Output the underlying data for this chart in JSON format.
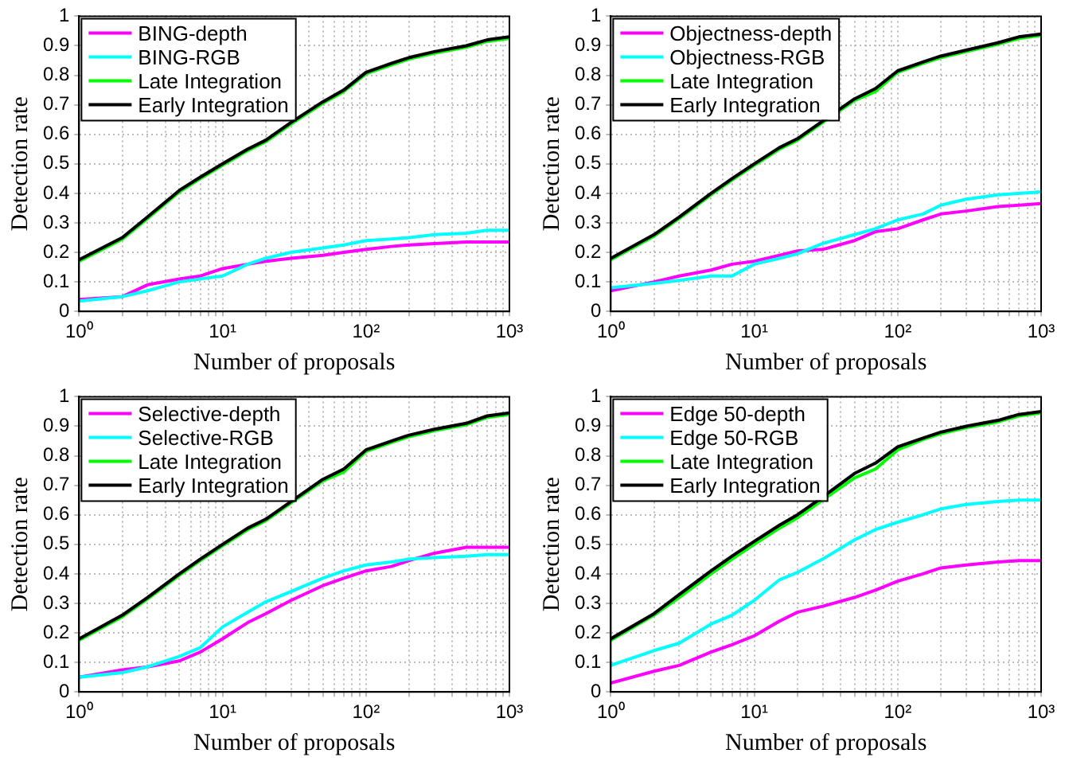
{
  "chart_data": [
    {
      "type": "line",
      "xlabel": "Number of proposals",
      "ylabel": "Detection rate",
      "log": "x",
      "grid": true,
      "legend": "top left",
      "marker": "none",
      "line_style": "solid",
      "x": [
        1,
        2,
        3,
        5,
        7,
        10,
        15,
        20,
        30,
        50,
        70,
        100,
        150,
        200,
        300,
        500,
        700,
        1000
      ],
      "xlim": [
        1,
        1000
      ],
      "xticks": [
        {
          "value": 1,
          "label": "10⁰"
        },
        {
          "value": 2,
          "label": null
        },
        {
          "value": 3,
          "label": null
        },
        {
          "value": 4,
          "label": null
        },
        {
          "value": 5,
          "label": null
        },
        {
          "value": 6,
          "label": null
        },
        {
          "value": 7,
          "label": null
        },
        {
          "value": 8,
          "label": null
        },
        {
          "value": 9,
          "label": null
        },
        {
          "value": 10,
          "label": "10¹"
        },
        {
          "value": 20,
          "label": null
        },
        {
          "value": 30,
          "label": null
        },
        {
          "value": 40,
          "label": null
        },
        {
          "value": 50,
          "label": null
        },
        {
          "value": 60,
          "label": null
        },
        {
          "value": 70,
          "label": null
        },
        {
          "value": 80,
          "label": null
        },
        {
          "value": 90,
          "label": null
        },
        {
          "value": 100,
          "label": "10²"
        },
        {
          "value": 200,
          "label": null
        },
        {
          "value": 300,
          "label": null
        },
        {
          "value": 400,
          "label": null
        },
        {
          "value": 500,
          "label": null
        },
        {
          "value": 600,
          "label": null
        },
        {
          "value": 700,
          "label": null
        },
        {
          "value": 800,
          "label": null
        },
        {
          "value": 900,
          "label": null
        },
        {
          "value": 1000,
          "label": "10³"
        }
      ],
      "ylim": [
        0,
        1
      ],
      "yticks": [
        0,
        0.1,
        0.2,
        0.3,
        0.4,
        0.5,
        0.6,
        0.7,
        0.8,
        0.9,
        1
      ],
      "series": [
        {
          "name": "BING-depth",
          "color": "#ff00ff",
          "values": [
            0.04,
            0.05,
            0.09,
            0.11,
            0.12,
            0.145,
            0.16,
            0.17,
            0.18,
            0.19,
            0.2,
            0.21,
            0.22,
            0.225,
            0.23,
            0.235,
            0.235,
            0.235
          ]
        },
        {
          "name": "BING-RGB",
          "color": "#00ffff",
          "values": [
            0.035,
            0.05,
            0.07,
            0.1,
            0.11,
            0.12,
            0.16,
            0.18,
            0.2,
            0.215,
            0.225,
            0.24,
            0.245,
            0.25,
            0.26,
            0.265,
            0.275,
            0.275
          ]
        },
        {
          "name": "Late Integration",
          "color": "#00ff00",
          "values": [
            0.17,
            0.245,
            0.315,
            0.405,
            0.45,
            0.495,
            0.545,
            0.575,
            0.635,
            0.705,
            0.745,
            0.805,
            0.835,
            0.855,
            0.875,
            0.895,
            0.915,
            0.925
          ]
        },
        {
          "name": "Early Integration",
          "color": "#000000",
          "values": [
            0.175,
            0.25,
            0.32,
            0.41,
            0.455,
            0.5,
            0.55,
            0.58,
            0.64,
            0.71,
            0.75,
            0.81,
            0.84,
            0.86,
            0.88,
            0.9,
            0.92,
            0.93
          ]
        }
      ]
    },
    {
      "type": "line",
      "xlabel": "Number of proposals",
      "ylabel": "Detection rate",
      "log": "x",
      "grid": true,
      "legend": "top left",
      "marker": "none",
      "line_style": "solid",
      "x": [
        1,
        2,
        3,
        5,
        7,
        10,
        15,
        20,
        30,
        50,
        70,
        100,
        150,
        200,
        300,
        500,
        700,
        1000
      ],
      "xlim": [
        1,
        1000
      ],
      "xticks": [
        {
          "value": 1,
          "label": "10⁰"
        },
        {
          "value": 2,
          "label": null
        },
        {
          "value": 3,
          "label": null
        },
        {
          "value": 4,
          "label": null
        },
        {
          "value": 5,
          "label": null
        },
        {
          "value": 6,
          "label": null
        },
        {
          "value": 7,
          "label": null
        },
        {
          "value": 8,
          "label": null
        },
        {
          "value": 9,
          "label": null
        },
        {
          "value": 10,
          "label": "10¹"
        },
        {
          "value": 20,
          "label": null
        },
        {
          "value": 30,
          "label": null
        },
        {
          "value": 40,
          "label": null
        },
        {
          "value": 50,
          "label": null
        },
        {
          "value": 60,
          "label": null
        },
        {
          "value": 70,
          "label": null
        },
        {
          "value": 80,
          "label": null
        },
        {
          "value": 90,
          "label": null
        },
        {
          "value": 100,
          "label": "10²"
        },
        {
          "value": 200,
          "label": null
        },
        {
          "value": 300,
          "label": null
        },
        {
          "value": 400,
          "label": null
        },
        {
          "value": 500,
          "label": null
        },
        {
          "value": 600,
          "label": null
        },
        {
          "value": 700,
          "label": null
        },
        {
          "value": 800,
          "label": null
        },
        {
          "value": 900,
          "label": null
        },
        {
          "value": 1000,
          "label": "10³"
        }
      ],
      "ylim": [
        0,
        1
      ],
      "yticks": [
        0,
        0.1,
        0.2,
        0.3,
        0.4,
        0.5,
        0.6,
        0.7,
        0.8,
        0.9,
        1
      ],
      "series": [
        {
          "name": "Objectness-depth",
          "color": "#ff00ff",
          "values": [
            0.07,
            0.1,
            0.12,
            0.14,
            0.16,
            0.17,
            0.19,
            0.205,
            0.21,
            0.24,
            0.27,
            0.28,
            0.31,
            0.33,
            0.34,
            0.355,
            0.36,
            0.365
          ]
        },
        {
          "name": "Objectness-RGB",
          "color": "#00ffff",
          "values": [
            0.08,
            0.095,
            0.105,
            0.12,
            0.12,
            0.16,
            0.18,
            0.195,
            0.23,
            0.26,
            0.28,
            0.31,
            0.33,
            0.36,
            0.38,
            0.395,
            0.4,
            0.405
          ]
        },
        {
          "name": "Late Integration",
          "color": "#00ff00",
          "values": [
            0.175,
            0.255,
            0.315,
            0.395,
            0.445,
            0.495,
            0.55,
            0.58,
            0.64,
            0.715,
            0.745,
            0.81,
            0.84,
            0.86,
            0.88,
            0.905,
            0.925,
            0.935
          ]
        },
        {
          "name": "Early Integration",
          "color": "#000000",
          "values": [
            0.18,
            0.26,
            0.32,
            0.4,
            0.45,
            0.5,
            0.555,
            0.585,
            0.645,
            0.72,
            0.755,
            0.815,
            0.845,
            0.865,
            0.885,
            0.91,
            0.93,
            0.94
          ]
        }
      ]
    },
    {
      "type": "line",
      "xlabel": "Number of proposals",
      "ylabel": "Detection rate",
      "log": "x",
      "grid": true,
      "legend": "top left",
      "marker": "none",
      "line_style": "solid",
      "x": [
        1,
        2,
        3,
        5,
        7,
        10,
        15,
        20,
        30,
        50,
        70,
        100,
        150,
        200,
        300,
        500,
        700,
        1000
      ],
      "xlim": [
        1,
        1000
      ],
      "xticks": [
        {
          "value": 1,
          "label": "10⁰"
        },
        {
          "value": 2,
          "label": null
        },
        {
          "value": 3,
          "label": null
        },
        {
          "value": 4,
          "label": null
        },
        {
          "value": 5,
          "label": null
        },
        {
          "value": 6,
          "label": null
        },
        {
          "value": 7,
          "label": null
        },
        {
          "value": 8,
          "label": null
        },
        {
          "value": 9,
          "label": null
        },
        {
          "value": 10,
          "label": "10¹"
        },
        {
          "value": 20,
          "label": null
        },
        {
          "value": 30,
          "label": null
        },
        {
          "value": 40,
          "label": null
        },
        {
          "value": 50,
          "label": null
        },
        {
          "value": 60,
          "label": null
        },
        {
          "value": 70,
          "label": null
        },
        {
          "value": 80,
          "label": null
        },
        {
          "value": 90,
          "label": null
        },
        {
          "value": 100,
          "label": "10²"
        },
        {
          "value": 200,
          "label": null
        },
        {
          "value": 300,
          "label": null
        },
        {
          "value": 400,
          "label": null
        },
        {
          "value": 500,
          "label": null
        },
        {
          "value": 600,
          "label": null
        },
        {
          "value": 700,
          "label": null
        },
        {
          "value": 800,
          "label": null
        },
        {
          "value": 900,
          "label": null
        },
        {
          "value": 1000,
          "label": "10³"
        }
      ],
      "ylim": [
        0,
        1
      ],
      "yticks": [
        0,
        0.1,
        0.2,
        0.3,
        0.4,
        0.5,
        0.6,
        0.7,
        0.8,
        0.9,
        1
      ],
      "series": [
        {
          "name": "Selective-depth",
          "color": "#ff00ff",
          "values": [
            0.05,
            0.075,
            0.085,
            0.105,
            0.135,
            0.18,
            0.235,
            0.265,
            0.31,
            0.36,
            0.385,
            0.41,
            0.425,
            0.445,
            0.47,
            0.49,
            0.49,
            0.49
          ]
        },
        {
          "name": "Selective-RGB",
          "color": "#00ffff",
          "values": [
            0.05,
            0.065,
            0.085,
            0.12,
            0.15,
            0.22,
            0.27,
            0.305,
            0.34,
            0.385,
            0.41,
            0.43,
            0.44,
            0.45,
            0.455,
            0.46,
            0.465,
            0.465
          ]
        },
        {
          "name": "Late Integration",
          "color": "#00ff00",
          "values": [
            0.175,
            0.255,
            0.315,
            0.395,
            0.445,
            0.495,
            0.55,
            0.58,
            0.64,
            0.715,
            0.745,
            0.815,
            0.845,
            0.865,
            0.885,
            0.905,
            0.93,
            0.94
          ]
        },
        {
          "name": "Early Integration",
          "color": "#000000",
          "values": [
            0.18,
            0.26,
            0.32,
            0.4,
            0.45,
            0.5,
            0.555,
            0.585,
            0.645,
            0.72,
            0.755,
            0.82,
            0.85,
            0.87,
            0.89,
            0.91,
            0.935,
            0.945
          ]
        }
      ]
    },
    {
      "type": "line",
      "xlabel": "Number of proposals",
      "ylabel": "Detection rate",
      "log": "x",
      "grid": true,
      "legend": "top left",
      "marker": "none",
      "line_style": "solid",
      "x": [
        1,
        2,
        3,
        5,
        7,
        10,
        15,
        20,
        30,
        50,
        70,
        100,
        150,
        200,
        300,
        500,
        700,
        1000
      ],
      "xlim": [
        1,
        1000
      ],
      "xticks": [
        {
          "value": 1,
          "label": "10⁰"
        },
        {
          "value": 2,
          "label": null
        },
        {
          "value": 3,
          "label": null
        },
        {
          "value": 4,
          "label": null
        },
        {
          "value": 5,
          "label": null
        },
        {
          "value": 6,
          "label": null
        },
        {
          "value": 7,
          "label": null
        },
        {
          "value": 8,
          "label": null
        },
        {
          "value": 9,
          "label": null
        },
        {
          "value": 10,
          "label": "10¹"
        },
        {
          "value": 20,
          "label": null
        },
        {
          "value": 30,
          "label": null
        },
        {
          "value": 40,
          "label": null
        },
        {
          "value": 50,
          "label": null
        },
        {
          "value": 60,
          "label": null
        },
        {
          "value": 70,
          "label": null
        },
        {
          "value": 80,
          "label": null
        },
        {
          "value": 90,
          "label": null
        },
        {
          "value": 100,
          "label": "10²"
        },
        {
          "value": 200,
          "label": null
        },
        {
          "value": 300,
          "label": null
        },
        {
          "value": 400,
          "label": null
        },
        {
          "value": 500,
          "label": null
        },
        {
          "value": 600,
          "label": null
        },
        {
          "value": 700,
          "label": null
        },
        {
          "value": 800,
          "label": null
        },
        {
          "value": 900,
          "label": null
        },
        {
          "value": 1000,
          "label": "10³"
        }
      ],
      "ylim": [
        0,
        1
      ],
      "yticks": [
        0,
        0.1,
        0.2,
        0.3,
        0.4,
        0.5,
        0.6,
        0.7,
        0.8,
        0.9,
        1
      ],
      "series": [
        {
          "name": "Edge 50-depth",
          "color": "#ff00ff",
          "values": [
            0.03,
            0.07,
            0.09,
            0.135,
            0.16,
            0.19,
            0.24,
            0.27,
            0.29,
            0.32,
            0.345,
            0.375,
            0.4,
            0.42,
            0.43,
            0.44,
            0.445,
            0.445
          ]
        },
        {
          "name": "Edge 50-RGB",
          "color": "#00ffff",
          "values": [
            0.09,
            0.14,
            0.165,
            0.23,
            0.26,
            0.31,
            0.38,
            0.405,
            0.45,
            0.515,
            0.55,
            0.575,
            0.6,
            0.62,
            0.635,
            0.645,
            0.65,
            0.65
          ]
        },
        {
          "name": "Late Integration",
          "color": "#00ff00",
          "values": [
            0.175,
            0.26,
            0.32,
            0.4,
            0.45,
            0.5,
            0.555,
            0.59,
            0.65,
            0.725,
            0.755,
            0.82,
            0.855,
            0.875,
            0.895,
            0.915,
            0.935,
            0.945
          ]
        },
        {
          "name": "Early Integration",
          "color": "#000000",
          "values": [
            0.18,
            0.265,
            0.33,
            0.41,
            0.46,
            0.51,
            0.565,
            0.6,
            0.66,
            0.74,
            0.775,
            0.83,
            0.86,
            0.88,
            0.9,
            0.92,
            0.94,
            0.95
          ]
        }
      ]
    }
  ]
}
